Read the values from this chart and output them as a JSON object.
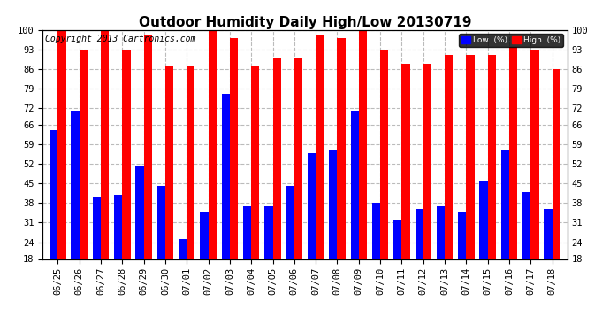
{
  "title": "Outdoor Humidity Daily High/Low 20130719",
  "copyright": "Copyright 2013 Cartronics.com",
  "dates": [
    "06/25",
    "06/26",
    "06/27",
    "06/28",
    "06/29",
    "06/30",
    "07/01",
    "07/02",
    "07/03",
    "07/04",
    "07/05",
    "07/06",
    "07/07",
    "07/08",
    "07/09",
    "07/10",
    "07/11",
    "07/12",
    "07/13",
    "07/14",
    "07/15",
    "07/16",
    "07/17",
    "07/18"
  ],
  "high": [
    100,
    93,
    100,
    93,
    98,
    87,
    87,
    100,
    97,
    87,
    90,
    90,
    98,
    97,
    101,
    93,
    88,
    88,
    91,
    91,
    91,
    94,
    93,
    86
  ],
  "low": [
    64,
    71,
    40,
    41,
    51,
    44,
    25,
    35,
    77,
    37,
    37,
    44,
    56,
    57,
    71,
    38,
    32,
    36,
    37,
    35,
    46,
    57,
    42,
    36
  ],
  "ylim_min": 18,
  "ylim_max": 100,
  "yticks": [
    18,
    24,
    31,
    38,
    45,
    52,
    59,
    66,
    72,
    79,
    86,
    93,
    100
  ],
  "high_color": "#ff0000",
  "low_color": "#0000ff",
  "legend_low_label": "Low  (%)",
  "legend_high_label": "High  (%)",
  "background_color": "#ffffff",
  "plot_bg_color": "#ffffff",
  "grid_color": "#bbbbbb",
  "title_fontsize": 11,
  "copyright_fontsize": 7,
  "tick_fontsize": 7.5,
  "bar_width": 0.38
}
